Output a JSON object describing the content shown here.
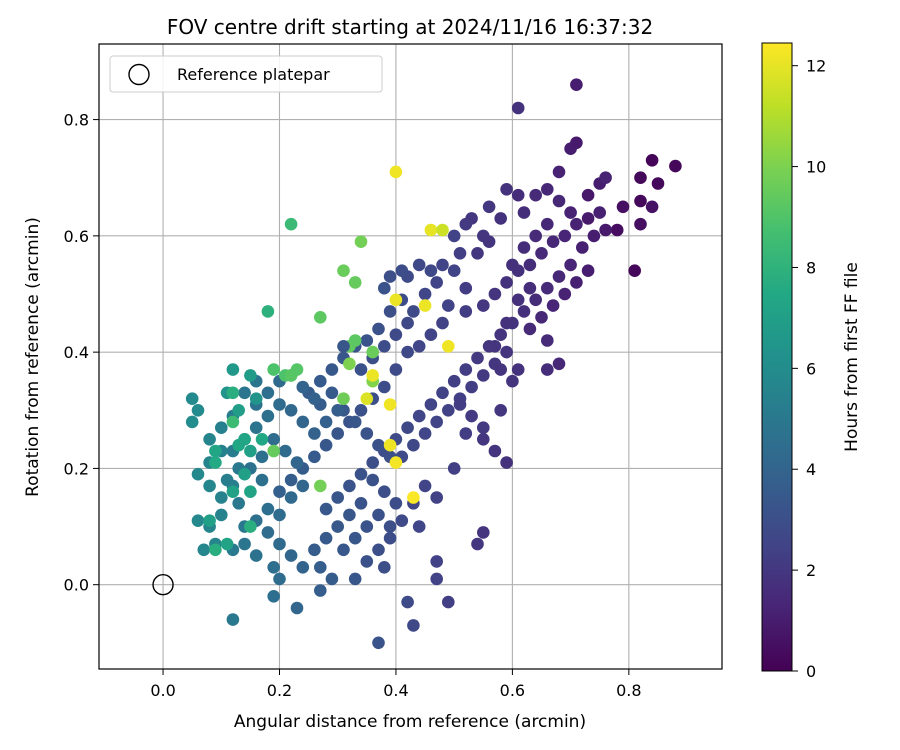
{
  "chart_data": {
    "type": "scatter",
    "title": "FOV centre drift starting at 2024/11/16 16:37:32",
    "xlabel": "Angular distance from reference (arcmin)",
    "ylabel": "Rotation from reference (arcmin)",
    "xlim": [
      -0.11,
      0.96
    ],
    "ylim": [
      -0.145,
      0.93
    ],
    "xticks": [
      0.0,
      0.2,
      0.4,
      0.6,
      0.8
    ],
    "xtick_labels": [
      "0.0",
      "0.2",
      "0.4",
      "0.6",
      "0.8"
    ],
    "yticks": [
      0.0,
      0.2,
      0.4,
      0.6,
      0.8
    ],
    "ytick_labels": [
      "0.0",
      "0.2",
      "0.4",
      "0.6",
      "0.8"
    ],
    "grid": true,
    "legend": {
      "placement": "top-left",
      "entries": [
        "Reference platepar"
      ]
    },
    "reference_point": {
      "x": 0.0,
      "y": 0.0
    },
    "colorbar": {
      "label": "Hours from first FF file",
      "range": [
        0,
        12.45
      ],
      "ticks": [
        0,
        2,
        4,
        6,
        8,
        10,
        12
      ],
      "tick_labels": [
        "0",
        "2",
        "4",
        "6",
        "8",
        "10",
        "12"
      ],
      "colormap": "viridis"
    },
    "points_xyc": [
      [
        0.88,
        0.72,
        0.2
      ],
      [
        0.84,
        0.73,
        0.1
      ],
      [
        0.85,
        0.69,
        0.3
      ],
      [
        0.82,
        0.7,
        0.3
      ],
      [
        0.71,
        0.86,
        1.0
      ],
      [
        0.7,
        0.75,
        1.0
      ],
      [
        0.71,
        0.76,
        0.9
      ],
      [
        0.68,
        0.71,
        1.2
      ],
      [
        0.73,
        0.67,
        0.8
      ],
      [
        0.75,
        0.69,
        1.0
      ],
      [
        0.76,
        0.7,
        1.2
      ],
      [
        0.79,
        0.65,
        0.5
      ],
      [
        0.82,
        0.66,
        0.3
      ],
      [
        0.84,
        0.65,
        0.6
      ],
      [
        0.82,
        0.62,
        0.5
      ],
      [
        0.81,
        0.54,
        0.2
      ],
      [
        0.78,
        0.61,
        0.4
      ],
      [
        0.73,
        0.63,
        0.9
      ],
      [
        0.75,
        0.64,
        1.1
      ],
      [
        0.7,
        0.64,
        1.2
      ],
      [
        0.68,
        0.66,
        1.4
      ],
      [
        0.66,
        0.68,
        1.4
      ],
      [
        0.64,
        0.67,
        1.5
      ],
      [
        0.62,
        0.64,
        1.6
      ],
      [
        0.61,
        0.67,
        1.6
      ],
      [
        0.59,
        0.68,
        1.8
      ],
      [
        0.61,
        0.82,
        1.8
      ],
      [
        0.56,
        0.65,
        2.0
      ],
      [
        0.55,
        0.6,
        2.0
      ],
      [
        0.53,
        0.63,
        2.0
      ],
      [
        0.52,
        0.62,
        2.1
      ],
      [
        0.5,
        0.6,
        2.4
      ],
      [
        0.51,
        0.57,
        2.3
      ],
      [
        0.5,
        0.54,
        2.5
      ],
      [
        0.48,
        0.55,
        2.5
      ],
      [
        0.46,
        0.54,
        2.7
      ],
      [
        0.44,
        0.55,
        2.7
      ],
      [
        0.42,
        0.53,
        2.8
      ],
      [
        0.41,
        0.54,
        2.9
      ],
      [
        0.39,
        0.53,
        3.0
      ],
      [
        0.38,
        0.51,
        3.2
      ],
      [
        0.45,
        0.5,
        2.6
      ],
      [
        0.47,
        0.52,
        2.5
      ],
      [
        0.49,
        0.48,
        2.5
      ],
      [
        0.52,
        0.47,
        2.2
      ],
      [
        0.55,
        0.48,
        2.0
      ],
      [
        0.57,
        0.5,
        1.9
      ],
      [
        0.59,
        0.52,
        1.8
      ],
      [
        0.61,
        0.54,
        1.7
      ],
      [
        0.63,
        0.55,
        1.6
      ],
      [
        0.65,
        0.57,
        1.5
      ],
      [
        0.67,
        0.59,
        1.4
      ],
      [
        0.69,
        0.6,
        1.3
      ],
      [
        0.71,
        0.62,
        1.2
      ],
      [
        0.72,
        0.58,
        1.1
      ],
      [
        0.74,
        0.6,
        1.0
      ],
      [
        0.76,
        0.61,
        0.9
      ],
      [
        0.7,
        0.55,
        1.3
      ],
      [
        0.68,
        0.53,
        1.4
      ],
      [
        0.66,
        0.51,
        1.5
      ],
      [
        0.64,
        0.49,
        1.6
      ],
      [
        0.62,
        0.47,
        1.7
      ],
      [
        0.6,
        0.45,
        1.8
      ],
      [
        0.58,
        0.43,
        1.9
      ],
      [
        0.56,
        0.41,
        2.0
      ],
      [
        0.54,
        0.39,
        2.1
      ],
      [
        0.52,
        0.37,
        2.2
      ],
      [
        0.5,
        0.35,
        2.3
      ],
      [
        0.48,
        0.33,
        2.4
      ],
      [
        0.46,
        0.31,
        2.5
      ],
      [
        0.44,
        0.29,
        2.6
      ],
      [
        0.42,
        0.27,
        2.7
      ],
      [
        0.4,
        0.25,
        2.8
      ],
      [
        0.38,
        0.23,
        2.9
      ],
      [
        0.36,
        0.21,
        3.0
      ],
      [
        0.34,
        0.19,
        3.1
      ],
      [
        0.32,
        0.17,
        3.2
      ],
      [
        0.3,
        0.15,
        3.3
      ],
      [
        0.28,
        0.13,
        3.4
      ],
      [
        0.63,
        0.44,
        1.5
      ],
      [
        0.65,
        0.46,
        1.4
      ],
      [
        0.67,
        0.48,
        1.3
      ],
      [
        0.69,
        0.5,
        1.2
      ],
      [
        0.71,
        0.52,
        1.1
      ],
      [
        0.73,
        0.54,
        1.0
      ],
      [
        0.66,
        0.42,
        1.5
      ],
      [
        0.68,
        0.38,
        1.4
      ],
      [
        0.66,
        0.37,
        1.6
      ],
      [
        0.61,
        0.37,
        1.8
      ],
      [
        0.6,
        0.35,
        1.9
      ],
      [
        0.59,
        0.4,
        1.9
      ],
      [
        0.57,
        0.38,
        2.0
      ],
      [
        0.55,
        0.36,
        2.1
      ],
      [
        0.53,
        0.34,
        2.2
      ],
      [
        0.51,
        0.32,
        2.3
      ],
      [
        0.49,
        0.3,
        2.4
      ],
      [
        0.47,
        0.28,
        2.5
      ],
      [
        0.45,
        0.26,
        2.6
      ],
      [
        0.43,
        0.24,
        2.7
      ],
      [
        0.41,
        0.22,
        2.8
      ],
      [
        0.52,
        0.26,
        2.2
      ],
      [
        0.55,
        0.27,
        2.1
      ],
      [
        0.58,
        0.3,
        2.0
      ],
      [
        0.5,
        0.2,
        2.3
      ],
      [
        0.47,
        0.15,
        2.4
      ],
      [
        0.45,
        0.17,
        2.5
      ],
      [
        0.43,
        0.14,
        2.6
      ],
      [
        0.44,
        0.1,
        2.6
      ],
      [
        0.41,
        0.11,
        2.8
      ],
      [
        0.39,
        0.08,
        2.9
      ],
      [
        0.37,
        0.06,
        3.0
      ],
      [
        0.35,
        0.04,
        3.1
      ],
      [
        0.33,
        0.01,
        3.3
      ],
      [
        0.38,
        0.03,
        3.0
      ],
      [
        0.42,
        -0.03,
        2.8
      ],
      [
        0.43,
        -0.07,
        2.7
      ],
      [
        0.37,
        -0.1,
        3.2
      ],
      [
        0.47,
        0.01,
        2.4
      ],
      [
        0.49,
        -0.03,
        2.3
      ],
      [
        0.47,
        0.04,
        2.4
      ],
      [
        0.55,
        0.09,
        1.9
      ],
      [
        0.54,
        0.07,
        2.0
      ],
      [
        0.59,
        0.21,
        1.8
      ],
      [
        0.57,
        0.23,
        1.9
      ],
      [
        0.55,
        0.25,
        2.0
      ],
      [
        0.53,
        0.29,
        2.1
      ],
      [
        0.51,
        0.31,
        2.2
      ],
      [
        0.58,
        0.37,
        1.9
      ],
      [
        0.57,
        0.41,
        1.9
      ],
      [
        0.59,
        0.45,
        1.8
      ],
      [
        0.61,
        0.49,
        1.7
      ],
      [
        0.63,
        0.51,
        1.6
      ],
      [
        0.6,
        0.55,
        1.7
      ],
      [
        0.62,
        0.58,
        1.6
      ],
      [
        0.64,
        0.6,
        1.5
      ],
      [
        0.66,
        0.62,
        1.4
      ],
      [
        0.58,
        0.63,
        1.8
      ],
      [
        0.56,
        0.59,
        1.9
      ],
      [
        0.54,
        0.57,
        2.0
      ],
      [
        0.52,
        0.51,
        2.2
      ],
      [
        0.48,
        0.45,
        2.4
      ],
      [
        0.46,
        0.43,
        2.5
      ],
      [
        0.44,
        0.41,
        2.6
      ],
      [
        0.42,
        0.45,
        2.7
      ],
      [
        0.4,
        0.43,
        2.8
      ],
      [
        0.38,
        0.41,
        2.9
      ],
      [
        0.36,
        0.39,
        3.0
      ],
      [
        0.34,
        0.37,
        3.1
      ],
      [
        0.35,
        0.42,
        3.2
      ],
      [
        0.37,
        0.44,
        3.1
      ],
      [
        0.39,
        0.47,
        3.0
      ],
      [
        0.41,
        0.49,
        2.9
      ],
      [
        0.43,
        0.47,
        2.8
      ],
      [
        0.42,
        0.4,
        2.7
      ],
      [
        0.4,
        0.37,
        2.8
      ],
      [
        0.38,
        0.34,
        2.9
      ],
      [
        0.36,
        0.32,
        3.0
      ],
      [
        0.34,
        0.3,
        3.1
      ],
      [
        0.32,
        0.28,
        3.2
      ],
      [
        0.3,
        0.26,
        3.3
      ],
      [
        0.28,
        0.24,
        3.4
      ],
      [
        0.26,
        0.22,
        3.5
      ],
      [
        0.24,
        0.2,
        3.6
      ],
      [
        0.22,
        0.18,
        3.7
      ],
      [
        0.2,
        0.16,
        3.8
      ],
      [
        0.33,
        0.41,
        3.2
      ],
      [
        0.31,
        0.39,
        3.3
      ],
      [
        0.29,
        0.37,
        3.4
      ],
      [
        0.27,
        0.35,
        3.5
      ],
      [
        0.25,
        0.33,
        3.6
      ],
      [
        0.27,
        0.31,
        3.6
      ],
      [
        0.29,
        0.33,
        3.5
      ],
      [
        0.31,
        0.3,
        3.4
      ],
      [
        0.33,
        0.28,
        3.3
      ],
      [
        0.35,
        0.26,
        3.2
      ],
      [
        0.37,
        0.24,
        3.1
      ],
      [
        0.39,
        0.22,
        3.0
      ],
      [
        0.36,
        0.18,
        3.1
      ],
      [
        0.38,
        0.16,
        3.0
      ],
      [
        0.4,
        0.14,
        2.9
      ],
      [
        0.34,
        0.14,
        3.2
      ],
      [
        0.32,
        0.12,
        3.3
      ],
      [
        0.3,
        0.1,
        3.4
      ],
      [
        0.28,
        0.08,
        3.5
      ],
      [
        0.26,
        0.06,
        3.6
      ],
      [
        0.31,
        0.06,
        3.4
      ],
      [
        0.33,
        0.08,
        3.3
      ],
      [
        0.35,
        0.1,
        3.2
      ],
      [
        0.37,
        0.12,
        3.1
      ],
      [
        0.39,
        0.1,
        3.0
      ],
      [
        0.27,
        0.03,
        3.7
      ],
      [
        0.29,
        0.01,
        3.6
      ],
      [
        0.27,
        -0.01,
        3.7
      ],
      [
        0.23,
        -0.04,
        4.1
      ],
      [
        0.24,
        0.03,
        4.0
      ],
      [
        0.22,
        0.05,
        4.1
      ],
      [
        0.2,
        0.07,
        4.3
      ],
      [
        0.18,
        0.09,
        4.4
      ],
      [
        0.16,
        0.11,
        4.6
      ],
      [
        0.18,
        0.13,
        4.5
      ],
      [
        0.2,
        0.12,
        4.4
      ],
      [
        0.22,
        0.15,
        4.2
      ],
      [
        0.24,
        0.17,
        4.1
      ],
      [
        0.23,
        0.21,
        4.1
      ],
      [
        0.21,
        0.23,
        4.3
      ],
      [
        0.19,
        0.25,
        4.4
      ],
      [
        0.17,
        0.22,
        4.6
      ],
      [
        0.15,
        0.2,
        4.7
      ],
      [
        0.17,
        0.18,
        4.6
      ],
      [
        0.19,
        0.03,
        4.5
      ],
      [
        0.2,
        0.01,
        4.4
      ],
      [
        0.19,
        -0.02,
        4.5
      ],
      [
        0.16,
        0.05,
        4.7
      ],
      [
        0.14,
        0.07,
        4.9
      ],
      [
        0.12,
        0.06,
        5.1
      ],
      [
        0.14,
        0.1,
        5.0
      ],
      [
        0.13,
        0.14,
        5.0
      ],
      [
        0.11,
        0.18,
        5.3
      ],
      [
        0.13,
        0.2,
        5.1
      ],
      [
        0.12,
        0.23,
        5.2
      ],
      [
        0.14,
        0.25,
        5.0
      ],
      [
        0.16,
        0.27,
        4.8
      ],
      [
        0.18,
        0.29,
        4.6
      ],
      [
        0.2,
        0.31,
        4.4
      ],
      [
        0.22,
        0.3,
        4.2
      ],
      [
        0.24,
        0.28,
        4.1
      ],
      [
        0.26,
        0.26,
        3.9
      ],
      [
        0.28,
        0.28,
        3.8
      ],
      [
        0.3,
        0.3,
        3.7
      ],
      [
        0.26,
        0.32,
        3.9
      ],
      [
        0.24,
        0.34,
        4.0
      ],
      [
        0.22,
        0.36,
        4.2
      ],
      [
        0.2,
        0.35,
        4.3
      ],
      [
        0.18,
        0.33,
        4.5
      ],
      [
        0.16,
        0.31,
        4.7
      ],
      [
        0.14,
        0.33,
        4.9
      ],
      [
        0.16,
        0.35,
        4.8
      ],
      [
        0.12,
        0.29,
        5.2
      ],
      [
        0.1,
        0.27,
        5.4
      ],
      [
        0.08,
        0.25,
        5.6
      ],
      [
        0.1,
        0.23,
        5.4
      ],
      [
        0.08,
        0.21,
        5.6
      ],
      [
        0.06,
        0.19,
        5.8
      ],
      [
        0.08,
        0.17,
        5.7
      ],
      [
        0.1,
        0.15,
        5.5
      ],
      [
        0.12,
        0.17,
        5.3
      ],
      [
        0.1,
        0.12,
        5.5
      ],
      [
        0.08,
        0.1,
        5.6
      ],
      [
        0.06,
        0.11,
        5.8
      ],
      [
        0.07,
        0.06,
        5.7
      ],
      [
        0.09,
        0.07,
        5.6
      ],
      [
        0.12,
        -0.06,
        5.0
      ],
      [
        0.05,
        0.32,
        5.9
      ],
      [
        0.06,
        0.3,
        5.9
      ],
      [
        0.05,
        0.28,
        6.0
      ],
      [
        0.11,
        0.33,
        6.4
      ],
      [
        0.12,
        0.37,
        6.6
      ],
      [
        0.16,
        0.32,
        6.4
      ],
      [
        0.18,
        0.47,
        7.9
      ],
      [
        0.22,
        0.62,
        8.4
      ],
      [
        0.15,
        0.36,
        6.8
      ],
      [
        0.13,
        0.3,
        6.9
      ],
      [
        0.13,
        0.24,
        7.4
      ],
      [
        0.15,
        0.23,
        7.0
      ],
      [
        0.14,
        0.25,
        7.3
      ],
      [
        0.17,
        0.25,
        7.4
      ],
      [
        0.14,
        0.19,
        7.0
      ],
      [
        0.15,
        0.16,
        7.2
      ],
      [
        0.12,
        0.16,
        7.1
      ],
      [
        0.09,
        0.23,
        7.3
      ],
      [
        0.09,
        0.21,
        7.5
      ],
      [
        0.08,
        0.11,
        7.0
      ],
      [
        0.09,
        0.06,
        7.8
      ],
      [
        0.15,
        0.1,
        7.8
      ],
      [
        0.11,
        0.07,
        7.2
      ],
      [
        0.12,
        0.33,
        7.8
      ],
      [
        0.12,
        0.28,
        8.5
      ],
      [
        0.19,
        0.37,
        8.9
      ],
      [
        0.21,
        0.36,
        8.9
      ],
      [
        0.22,
        0.36,
        9.2
      ],
      [
        0.23,
        0.37,
        9.1
      ],
      [
        0.19,
        0.23,
        9.5
      ],
      [
        0.27,
        0.46,
        9.3
      ],
      [
        0.31,
        0.54,
        9.6
      ],
      [
        0.34,
        0.59,
        9.8
      ],
      [
        0.33,
        0.52,
        9.5
      ],
      [
        0.32,
        0.41,
        9.4
      ],
      [
        0.33,
        0.42,
        9.3
      ],
      [
        0.36,
        0.4,
        9.6
      ],
      [
        0.36,
        0.35,
        10.1
      ],
      [
        0.31,
        0.32,
        9.7
      ],
      [
        0.27,
        0.17,
        9.8
      ],
      [
        0.32,
        0.38,
        10.0
      ],
      [
        0.4,
        0.71,
        12.2
      ],
      [
        0.46,
        0.61,
        12.0
      ],
      [
        0.48,
        0.61,
        11.5
      ],
      [
        0.4,
        0.49,
        12.1
      ],
      [
        0.45,
        0.48,
        12.1
      ],
      [
        0.49,
        0.41,
        12.2
      ],
      [
        0.36,
        0.36,
        12.1
      ],
      [
        0.35,
        0.32,
        11.8
      ],
      [
        0.39,
        0.31,
        12.2
      ],
      [
        0.39,
        0.24,
        12.2
      ],
      [
        0.4,
        0.21,
        12.3
      ],
      [
        0.43,
        0.15,
        12.4
      ],
      [
        0.31,
        0.41,
        3.3
      ]
    ]
  }
}
